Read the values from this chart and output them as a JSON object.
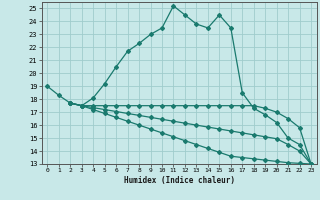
{
  "title": "",
  "xlabel": "Humidex (Indice chaleur)",
  "ylabel": "",
  "xlim": [
    -0.5,
    23.5
  ],
  "ylim": [
    13,
    25.5
  ],
  "yticks": [
    13,
    14,
    15,
    16,
    17,
    18,
    19,
    20,
    21,
    22,
    23,
    24,
    25
  ],
  "xticks": [
    0,
    1,
    2,
    3,
    4,
    5,
    6,
    7,
    8,
    9,
    10,
    11,
    12,
    13,
    14,
    15,
    16,
    17,
    18,
    19,
    20,
    21,
    22,
    23
  ],
  "background_color": "#c8e8e8",
  "grid_color": "#a0cccc",
  "line_color": "#1a7a6e",
  "series": [
    {
      "x": [
        0,
        1,
        2,
        3,
        4,
        5,
        6,
        7,
        8,
        9,
        10,
        11,
        12,
        13,
        14,
        15,
        16,
        17,
        18,
        19,
        20,
        21,
        22,
        23
      ],
      "y": [
        19.0,
        18.3,
        17.7,
        17.5,
        18.1,
        19.2,
        20.5,
        21.7,
        22.3,
        23.0,
        23.5,
        25.2,
        24.5,
        23.8,
        23.5,
        24.5,
        23.5,
        18.5,
        17.3,
        16.8,
        16.2,
        15.0,
        14.5,
        13.0
      ]
    },
    {
      "x": [
        2,
        3,
        4,
        5,
        6,
        7,
        8,
        9,
        10,
        11,
        12,
        13,
        14,
        15,
        16,
        17,
        18,
        19,
        20,
        21,
        22,
        23
      ],
      "y": [
        17.7,
        17.5,
        17.5,
        17.5,
        17.5,
        17.5,
        17.5,
        17.5,
        17.5,
        17.5,
        17.5,
        17.5,
        17.5,
        17.5,
        17.5,
        17.5,
        17.5,
        17.3,
        17.0,
        16.5,
        15.8,
        13.0
      ]
    },
    {
      "x": [
        2,
        3,
        4,
        5,
        6,
        7,
        8,
        9,
        10,
        11,
        12,
        13,
        14,
        15,
        16,
        17,
        18,
        19,
        20,
        21,
        22,
        23
      ],
      "y": [
        17.7,
        17.5,
        17.35,
        17.2,
        17.05,
        16.9,
        16.75,
        16.6,
        16.45,
        16.3,
        16.15,
        16.0,
        15.85,
        15.7,
        15.55,
        15.4,
        15.25,
        15.1,
        14.95,
        14.5,
        14.0,
        13.0
      ]
    },
    {
      "x": [
        2,
        3,
        4,
        5,
        6,
        7,
        8,
        9,
        10,
        11,
        12,
        13,
        14,
        15,
        16,
        17,
        18,
        19,
        20,
        21,
        22,
        23
      ],
      "y": [
        17.7,
        17.5,
        17.2,
        16.9,
        16.6,
        16.3,
        16.0,
        15.7,
        15.4,
        15.1,
        14.8,
        14.5,
        14.2,
        13.9,
        13.6,
        13.5,
        13.4,
        13.3,
        13.2,
        13.1,
        13.05,
        13.0
      ]
    }
  ]
}
